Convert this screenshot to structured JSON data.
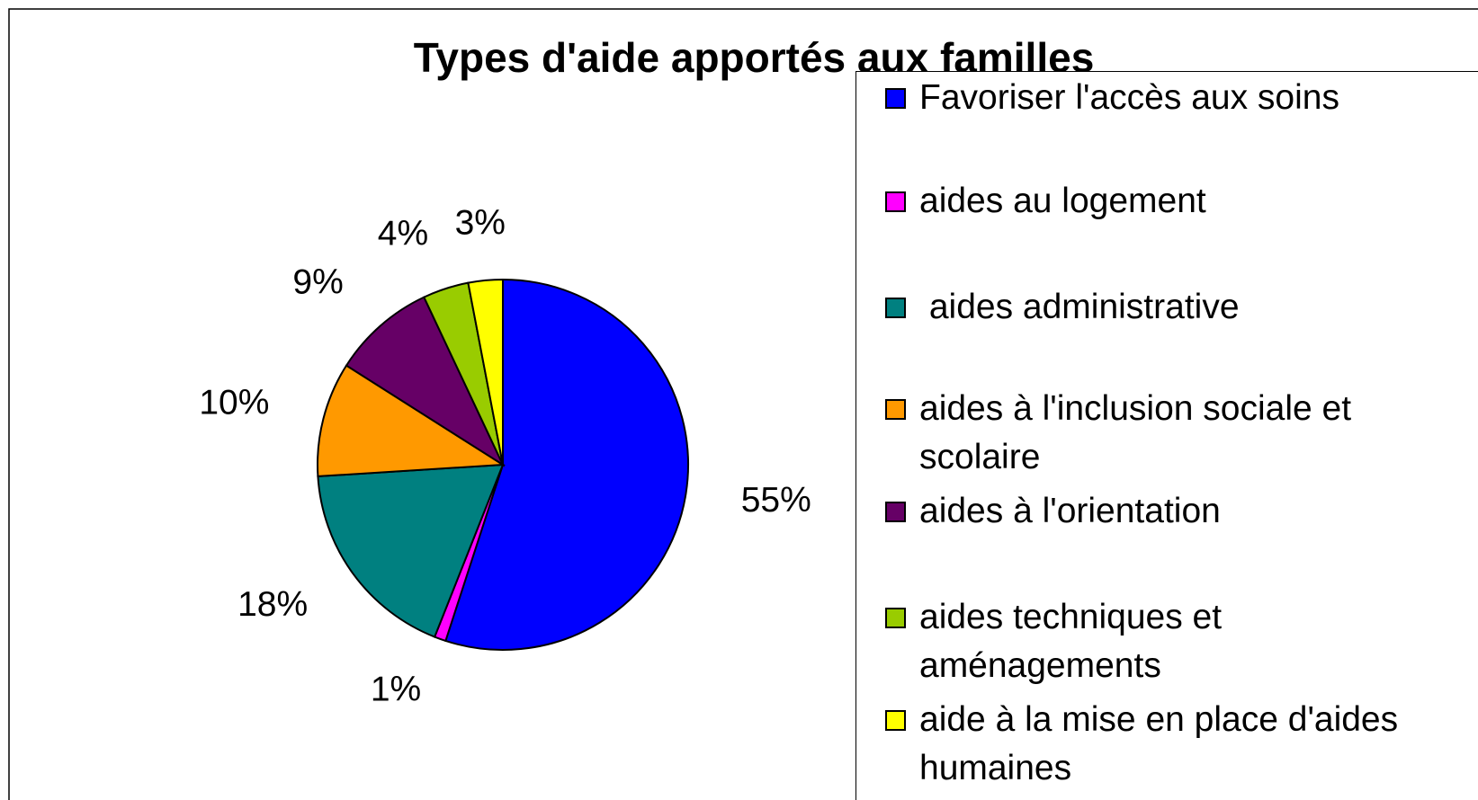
{
  "chart_data": {
    "type": "pie",
    "title": "Types d'aide apportés aux familles",
    "categories": [
      "Favoriser l'accès aux soins",
      "aides au logement",
      " aides administrative",
      "aides à l'inclusion sociale et scolaire",
      "aides à l'orientation",
      "aides techniques et aménagements",
      "aide à la mise en place d'aides humaines"
    ],
    "values": [
      55,
      1,
      18,
      10,
      9,
      4,
      3
    ],
    "value_labels": [
      "55%",
      "1%",
      "18%",
      "10%",
      "9%",
      "4%",
      "3%"
    ],
    "colors": [
      "#0000ff",
      "#ff00ff",
      "#008080",
      "#ff9900",
      "#660066",
      "#99cc00",
      "#ffff00"
    ],
    "legend": "right"
  }
}
